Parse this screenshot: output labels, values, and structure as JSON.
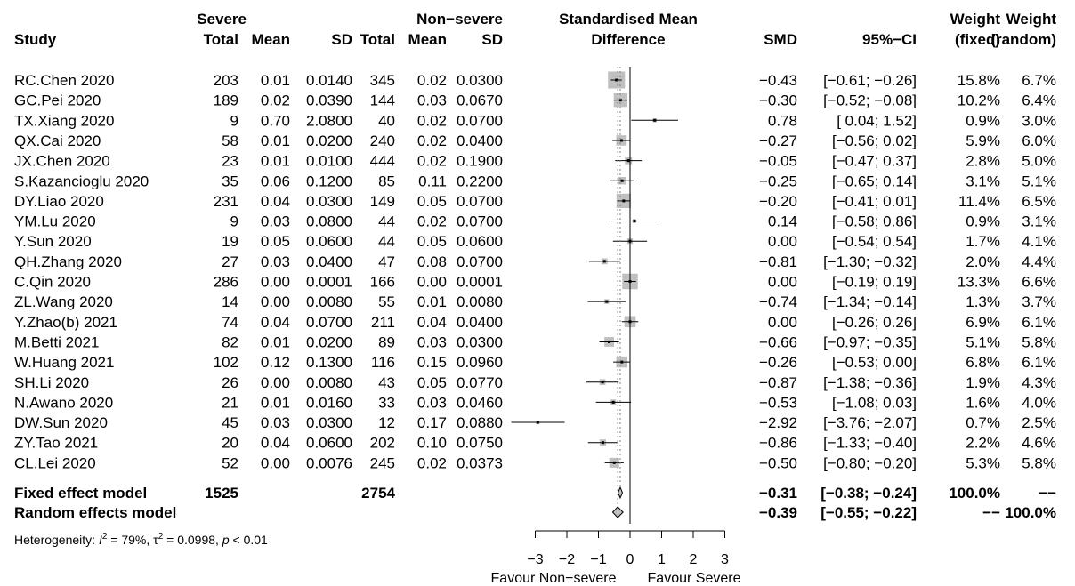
{
  "header": {
    "study": "Study",
    "severe": "Severe",
    "nonsevere": "Non−severe",
    "total": "Total",
    "mean": "Mean",
    "sd": "SD",
    "smd_title_1": "Standardised Mean",
    "smd_title_2": "Difference",
    "smd": "SMD",
    "ci": "95%−CI",
    "weight": "Weight",
    "fixed": "(fixed)",
    "random": "(random)"
  },
  "chart_data": {
    "type": "forest",
    "xlim": [
      -3,
      3
    ],
    "xticks": [
      "−3",
      "−2",
      "−1",
      "0",
      "1",
      "2",
      "3"
    ],
    "xtick_values": [
      -3,
      -2,
      -1,
      0,
      1,
      2,
      3
    ],
    "xlabel_left": "Favour Non−severe",
    "xlabel_right": "Favour Severe",
    "studies": [
      {
        "study": "RC.Chen 2020",
        "n1": "203",
        "m1": "0.01",
        "s1": "0.0140",
        "n2": "345",
        "m2": "0.02",
        "s2": "0.0300",
        "smd": "−0.43",
        "ci": "[−0.61; −0.26]",
        "wf": "15.8%",
        "wr": "6.7%",
        "est": -0.43,
        "lo": -0.61,
        "hi": -0.26,
        "w": 15.8
      },
      {
        "study": "GC.Pei 2020",
        "n1": "189",
        "m1": "0.02",
        "s1": "0.0390",
        "n2": "144",
        "m2": "0.03",
        "s2": "0.0670",
        "smd": "−0.30",
        "ci": "[−0.52; −0.08]",
        "wf": "10.2%",
        "wr": "6.4%",
        "est": -0.3,
        "lo": -0.52,
        "hi": -0.08,
        "w": 10.2
      },
      {
        "study": "TX.Xiang 2020",
        "n1": "9",
        "m1": "0.70",
        "s1": "2.0800",
        "n2": "40",
        "m2": "0.02",
        "s2": "0.0700",
        "smd": "0.78",
        "ci": "[ 0.04; 1.52]",
        "wf": "0.9%",
        "wr": "3.0%",
        "est": 0.78,
        "lo": 0.04,
        "hi": 1.52,
        "w": 0.9
      },
      {
        "study": "QX.Cai 2020",
        "n1": "58",
        "m1": "0.01",
        "s1": "0.0200",
        "n2": "240",
        "m2": "0.02",
        "s2": "0.0400",
        "smd": "−0.27",
        "ci": "[−0.56; 0.02]",
        "wf": "5.9%",
        "wr": "6.0%",
        "est": -0.27,
        "lo": -0.56,
        "hi": 0.02,
        "w": 5.9
      },
      {
        "study": "JX.Chen 2020",
        "n1": "23",
        "m1": "0.01",
        "s1": "0.0100",
        "n2": "444",
        "m2": "0.02",
        "s2": "0.1900",
        "smd": "−0.05",
        "ci": "[−0.47; 0.37]",
        "wf": "2.8%",
        "wr": "5.0%",
        "est": -0.05,
        "lo": -0.47,
        "hi": 0.37,
        "w": 2.8
      },
      {
        "study": "S.Kazancioglu 2020",
        "n1": "35",
        "m1": "0.06",
        "s1": "0.1200",
        "n2": "85",
        "m2": "0.11",
        "s2": "0.2200",
        "smd": "−0.25",
        "ci": "[−0.65; 0.14]",
        "wf": "3.1%",
        "wr": "5.1%",
        "est": -0.25,
        "lo": -0.65,
        "hi": 0.14,
        "w": 3.1
      },
      {
        "study": "DY.Liao 2020",
        "n1": "231",
        "m1": "0.04",
        "s1": "0.0300",
        "n2": "149",
        "m2": "0.05",
        "s2": "0.0700",
        "smd": "−0.20",
        "ci": "[−0.41; 0.01]",
        "wf": "11.4%",
        "wr": "6.5%",
        "est": -0.2,
        "lo": -0.41,
        "hi": 0.01,
        "w": 11.4
      },
      {
        "study": "YM.Lu 2020",
        "n1": "9",
        "m1": "0.03",
        "s1": "0.0800",
        "n2": "44",
        "m2": "0.02",
        "s2": "0.0700",
        "smd": "0.14",
        "ci": "[−0.58; 0.86]",
        "wf": "0.9%",
        "wr": "3.1%",
        "est": 0.14,
        "lo": -0.58,
        "hi": 0.86,
        "w": 0.9
      },
      {
        "study": "Y.Sun 2020",
        "n1": "19",
        "m1": "0.05",
        "s1": "0.0600",
        "n2": "44",
        "m2": "0.05",
        "s2": "0.0600",
        "smd": "0.00",
        "ci": "[−0.54; 0.54]",
        "wf": "1.7%",
        "wr": "4.1%",
        "est": 0.0,
        "lo": -0.54,
        "hi": 0.54,
        "w": 1.7
      },
      {
        "study": "QH.Zhang 2020",
        "n1": "27",
        "m1": "0.03",
        "s1": "0.0400",
        "n2": "47",
        "m2": "0.08",
        "s2": "0.0700",
        "smd": "−0.81",
        "ci": "[−1.30; −0.32]",
        "wf": "2.0%",
        "wr": "4.4%",
        "est": -0.81,
        "lo": -1.3,
        "hi": -0.32,
        "w": 2.0
      },
      {
        "study": "C.Qin 2020",
        "n1": "286",
        "m1": "0.00",
        "s1": "0.0001",
        "n2": "166",
        "m2": "0.00",
        "s2": "0.0001",
        "smd": "0.00",
        "ci": "[−0.19; 0.19]",
        "wf": "13.3%",
        "wr": "6.6%",
        "est": 0.0,
        "lo": -0.19,
        "hi": 0.19,
        "w": 13.3
      },
      {
        "study": "ZL.Wang 2020",
        "n1": "14",
        "m1": "0.00",
        "s1": "0.0080",
        "n2": "55",
        "m2": "0.01",
        "s2": "0.0080",
        "smd": "−0.74",
        "ci": "[−1.34; −0.14]",
        "wf": "1.3%",
        "wr": "3.7%",
        "est": -0.74,
        "lo": -1.34,
        "hi": -0.14,
        "w": 1.3
      },
      {
        "study": "Y.Zhao(b) 2021",
        "n1": "74",
        "m1": "0.04",
        "s1": "0.0700",
        "n2": "211",
        "m2": "0.04",
        "s2": "0.0400",
        "smd": "0.00",
        "ci": "[−0.26; 0.26]",
        "wf": "6.9%",
        "wr": "6.1%",
        "est": 0.0,
        "lo": -0.26,
        "hi": 0.26,
        "w": 6.9
      },
      {
        "study": "M.Betti 2021",
        "n1": "82",
        "m1": "0.01",
        "s1": "0.0200",
        "n2": "89",
        "m2": "0.03",
        "s2": "0.0300",
        "smd": "−0.66",
        "ci": "[−0.97; −0.35]",
        "wf": "5.1%",
        "wr": "5.8%",
        "est": -0.66,
        "lo": -0.97,
        "hi": -0.35,
        "w": 5.1
      },
      {
        "study": "W.Huang 2021",
        "n1": "102",
        "m1": "0.12",
        "s1": "0.1300",
        "n2": "116",
        "m2": "0.15",
        "s2": "0.0960",
        "smd": "−0.26",
        "ci": "[−0.53; 0.00]",
        "wf": "6.8%",
        "wr": "6.1%",
        "est": -0.26,
        "lo": -0.53,
        "hi": 0.0,
        "w": 6.8
      },
      {
        "study": "SH.Li 2020",
        "n1": "26",
        "m1": "0.00",
        "s1": "0.0080",
        "n2": "43",
        "m2": "0.05",
        "s2": "0.0770",
        "smd": "−0.87",
        "ci": "[−1.38; −0.36]",
        "wf": "1.9%",
        "wr": "4.3%",
        "est": -0.87,
        "lo": -1.38,
        "hi": -0.36,
        "w": 1.9
      },
      {
        "study": "N.Awano 2020",
        "n1": "21",
        "m1": "0.01",
        "s1": "0.0160",
        "n2": "33",
        "m2": "0.03",
        "s2": "0.0460",
        "smd": "−0.53",
        "ci": "[−1.08; 0.03]",
        "wf": "1.6%",
        "wr": "4.0%",
        "est": -0.53,
        "lo": -1.08,
        "hi": 0.03,
        "w": 1.6
      },
      {
        "study": "DW.Sun 2020",
        "n1": "45",
        "m1": "0.03",
        "s1": "0.0300",
        "n2": "12",
        "m2": "0.17",
        "s2": "0.0880",
        "smd": "−2.92",
        "ci": "[−3.76; −2.07]",
        "wf": "0.7%",
        "wr": "2.5%",
        "est": -2.92,
        "lo": -3.76,
        "hi": -2.07,
        "w": 0.7
      },
      {
        "study": "ZY.Tao 2021",
        "n1": "20",
        "m1": "0.04",
        "s1": "0.0600",
        "n2": "202",
        "m2": "0.10",
        "s2": "0.0750",
        "smd": "−0.86",
        "ci": "[−1.33; −0.40]",
        "wf": "2.2%",
        "wr": "4.6%",
        "est": -0.86,
        "lo": -1.33,
        "hi": -0.4,
        "w": 2.2
      },
      {
        "study": "CL.Lei 2020",
        "n1": "52",
        "m1": "0.00",
        "s1": "0.0076",
        "n2": "245",
        "m2": "0.02",
        "s2": "0.0373",
        "smd": "−0.50",
        "ci": "[−0.80; −0.20]",
        "wf": "5.3%",
        "wr": "5.8%",
        "est": -0.5,
        "lo": -0.8,
        "hi": -0.2,
        "w": 5.3
      }
    ],
    "fixed": {
      "label": "Fixed effect model",
      "n1": "1525",
      "n2": "2754",
      "smd": "−0.31",
      "ci": "[−0.38; −0.24]",
      "wf": "100.0%",
      "wr": "−−",
      "est": -0.31,
      "lo": -0.38,
      "hi": -0.24
    },
    "random": {
      "label": "Random effects model",
      "smd": "−0.39",
      "ci": "[−0.55; −0.22]",
      "wf": "−−",
      "wr": "100.0%",
      "est": -0.39,
      "lo": -0.55,
      "hi": -0.22
    },
    "heterogeneity": {
      "prefix": "Heterogeneity: ",
      "i2_sym": "I",
      "i2_sup": "2",
      "i2_val": " = 79%, ",
      "tau_sym": "τ",
      "tau_sup": "2",
      "tau_val": " = 0.0998, ",
      "p_sym": "p",
      "p_val": " < 0.01"
    },
    "colors": {
      "box": "#c0c0c0",
      "diamond_fill": "#c0c0c0",
      "line": "#000000",
      "dotted": "#808080"
    }
  }
}
